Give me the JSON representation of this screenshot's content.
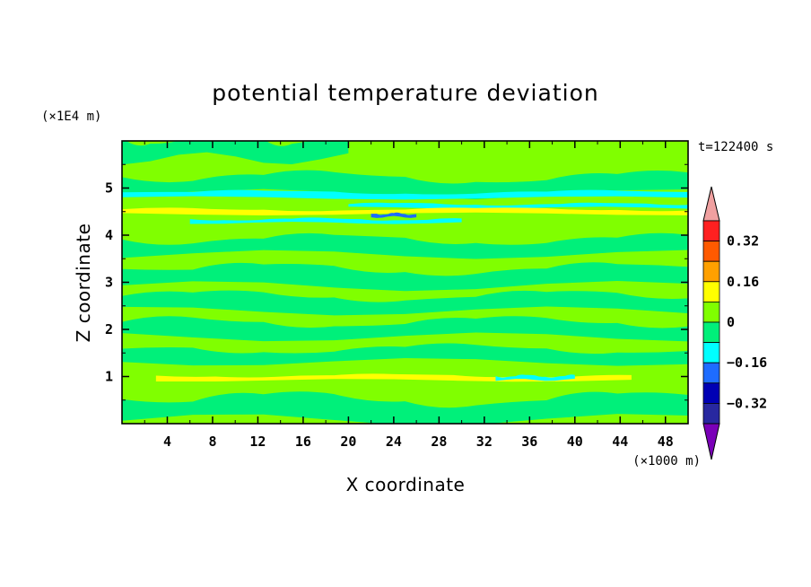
{
  "chart_data": {
    "type": "heatmap",
    "title": "potential temperature deviation",
    "xlabel": "X coordinate",
    "ylabel": "Z coordinate",
    "x_unit": "(×1000 m)",
    "y_unit": "(×1E4 m)",
    "time_label": "t=122400 s",
    "xlim": [
      0,
      50
    ],
    "ylim": [
      0,
      6
    ],
    "x_ticks": [
      "4",
      "8",
      "12",
      "16",
      "20",
      "24",
      "28",
      "32",
      "36",
      "40",
      "44",
      "48"
    ],
    "y_ticks": [
      "1",
      "2",
      "3",
      "4",
      "5"
    ],
    "colorbar": {
      "levels": [
        -0.32,
        -0.24,
        -0.16,
        -0.08,
        0,
        0.08,
        0.16,
        0.24,
        0.32,
        0.4
      ],
      "tick_labels": [
        "0.32",
        "0.16",
        "0",
        "−0.16",
        "−0.32"
      ],
      "colors": [
        "#7a00b8",
        "#2828a0",
        "#0000b4",
        "#1e6cff",
        "#00ffff",
        "#00f07a",
        "#80ff00",
        "#ffff00",
        "#ffa000",
        "#ff5a00",
        "#ff2020",
        "#f0a0a0"
      ]
    },
    "background_level": "#80ff00",
    "bands": [
      {
        "z": 5.85,
        "x": [
          0,
          20
        ],
        "value": "#00f07a"
      },
      {
        "z": 5.05,
        "x": [
          0,
          50
        ],
        "value": "#00f07a"
      },
      {
        "z": 4.85,
        "x": [
          0,
          50
        ],
        "value": "#00ffff"
      },
      {
        "z": 4.62,
        "x": [
          20,
          50
        ],
        "value": "#00ffff"
      },
      {
        "z": 4.5,
        "x": [
          0,
          50
        ],
        "value": "#ffff00"
      },
      {
        "z": 4.42,
        "x": [
          22,
          26
        ],
        "value": "#1e6cff"
      },
      {
        "z": 4.3,
        "x": [
          6,
          30
        ],
        "value": "#00ffff"
      },
      {
        "z": 3.75,
        "x": [
          0,
          50
        ],
        "value": "#00f07a"
      },
      {
        "z": 3.1,
        "x": [
          0,
          50
        ],
        "value": "#00f07a"
      },
      {
        "z": 2.55,
        "x": [
          0,
          50
        ],
        "value": "#00f07a"
      },
      {
        "z": 2.0,
        "x": [
          0,
          50
        ],
        "value": "#00f07a"
      },
      {
        "z": 1.45,
        "x": [
          0,
          50
        ],
        "value": "#00f07a"
      },
      {
        "z": 0.97,
        "x": [
          3,
          45
        ],
        "value": "#ffff00"
      },
      {
        "z": 0.97,
        "x": [
          33,
          40
        ],
        "value": "#00ffff"
      },
      {
        "z": 0.3,
        "x": [
          0,
          50
        ],
        "value": "#00f07a"
      }
    ]
  }
}
